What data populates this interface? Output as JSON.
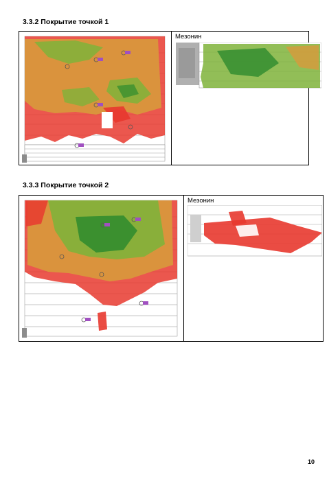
{
  "sections": [
    {
      "heading": "3.3.2 Покрытие точкой 1",
      "mezzanine_label": "Мезонин"
    },
    {
      "heading": "3.3.3 Покрытие точкой 2",
      "mezzanine_label": "Мезонин"
    }
  ],
  "page_number": "10",
  "colors": {
    "strong": "#2e8b2e",
    "good": "#7fb33a",
    "medium": "#d89a3c",
    "weak": "#e8392f",
    "plan": "#8c8c8c"
  }
}
